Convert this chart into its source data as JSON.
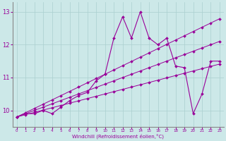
{
  "xlabel": "Windchill (Refroidissement éolien,°C)",
  "x": [
    0,
    1,
    2,
    3,
    4,
    5,
    6,
    7,
    8,
    9,
    10,
    11,
    12,
    13,
    14,
    15,
    16,
    17,
    18,
    19,
    20,
    21,
    22,
    23
  ],
  "main_line": [
    9.8,
    9.9,
    9.9,
    10.0,
    9.9,
    10.1,
    10.3,
    10.45,
    10.55,
    10.9,
    11.1,
    12.2,
    12.85,
    12.2,
    13.0,
    12.2,
    12.0,
    12.2,
    11.35,
    11.3,
    9.9,
    10.5,
    11.5,
    11.5
  ],
  "trend1": [
    9.8,
    9.93,
    10.06,
    10.19,
    10.32,
    10.45,
    10.58,
    10.71,
    10.84,
    10.97,
    11.1,
    11.23,
    11.36,
    11.49,
    11.62,
    11.75,
    11.88,
    12.01,
    12.14,
    12.27,
    12.4,
    12.53,
    12.66,
    12.79
  ],
  "trend2": [
    9.8,
    9.9,
    10.0,
    10.1,
    10.2,
    10.3,
    10.4,
    10.5,
    10.6,
    10.7,
    10.8,
    10.9,
    11.0,
    11.1,
    11.2,
    11.3,
    11.4,
    11.5,
    11.6,
    11.7,
    11.8,
    11.9,
    12.0,
    12.1
  ],
  "trend3": [
    9.8,
    9.87,
    9.94,
    10.01,
    10.08,
    10.15,
    10.22,
    10.29,
    10.36,
    10.43,
    10.5,
    10.57,
    10.64,
    10.71,
    10.78,
    10.85,
    10.92,
    10.99,
    11.06,
    11.13,
    11.2,
    11.27,
    11.34,
    11.41
  ],
  "ylim": [
    9.5,
    13.3
  ],
  "xlim": [
    -0.5,
    23.5
  ],
  "yticks": [
    10,
    11,
    12,
    13
  ],
  "color": "#990099",
  "bg_color": "#cce8e8",
  "grid_color": "#aacfcf"
}
